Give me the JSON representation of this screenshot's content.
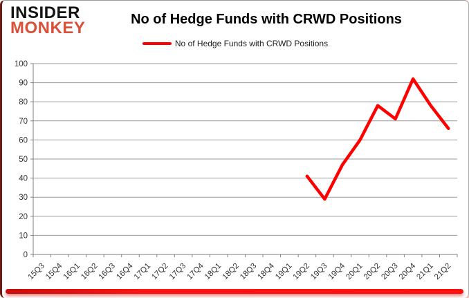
{
  "brand": {
    "line1": "INSIDER",
    "line2": "MONKEY"
  },
  "header": {
    "title": "No of Hedge Funds with CRWD Positions"
  },
  "legend": {
    "label": "No of Hedge Funds with CRWD Positions"
  },
  "colors": {
    "series_line": "#fe0000",
    "brand_red": "#d94f38",
    "brand_black": "#141414",
    "grid": "#9a9a9a",
    "axis": "#7f7f7f",
    "tick_text": "#333333",
    "accent_bar": "#e60000",
    "left_border": "#6e1a12"
  },
  "chart_data": {
    "type": "line",
    "title": "No of Hedge Funds with CRWD Positions",
    "xlabel": "",
    "ylabel": "",
    "ylim": [
      0,
      100
    ],
    "ytick_step": 10,
    "grid": true,
    "legend_position": "top-center",
    "categories": [
      "15Q3",
      "15Q4",
      "16Q1",
      "16Q2",
      "16Q3",
      "16Q4",
      "17Q1",
      "17Q2",
      "17Q3",
      "17Q4",
      "18Q1",
      "18Q2",
      "18Q3",
      "18Q4",
      "19Q1",
      "19Q2",
      "19Q3",
      "19Q4",
      "20Q1",
      "20Q2",
      "20Q3",
      "20Q4",
      "21Q1",
      "21Q2"
    ],
    "series": [
      {
        "name": "No of Hedge Funds with CRWD Positions",
        "color": "#fe0000",
        "values": [
          null,
          null,
          null,
          null,
          null,
          null,
          null,
          null,
          null,
          null,
          null,
          null,
          null,
          null,
          null,
          41,
          29,
          47,
          60,
          78,
          71,
          92,
          78,
          66
        ]
      }
    ]
  }
}
